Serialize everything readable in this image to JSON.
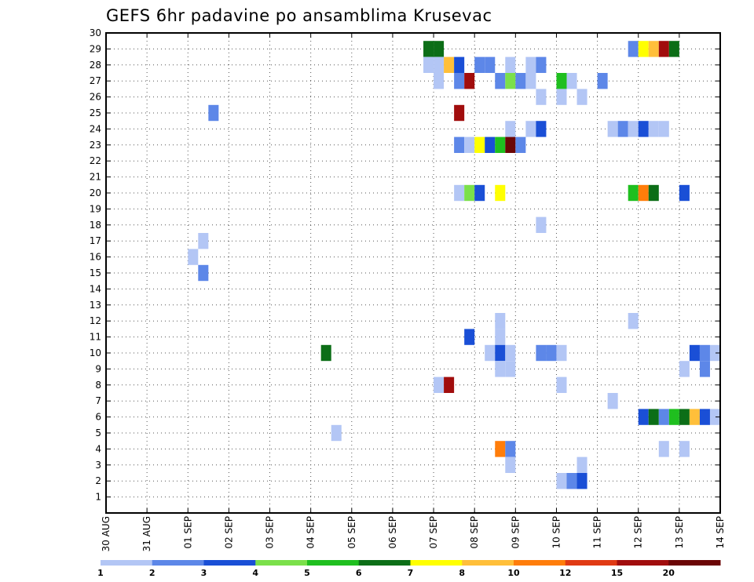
{
  "chart_data": {
    "type": "heatmap",
    "title": "GEFS 6hr padavine po ansamblima Krusevac",
    "xlabel": "",
    "ylabel": "",
    "x_range": [
      0,
      15
    ],
    "y_range": [
      0,
      30
    ],
    "cell_width_days": 0.25,
    "y_ticks": [
      1,
      2,
      3,
      4,
      5,
      6,
      7,
      8,
      9,
      10,
      11,
      12,
      13,
      14,
      15,
      16,
      17,
      18,
      19,
      20,
      21,
      22,
      23,
      24,
      25,
      26,
      27,
      28,
      29,
      30
    ],
    "x_ticks": [
      {
        "x": 0,
        "label": "30 AUG"
      },
      {
        "x": 1,
        "label": "31 AUG"
      },
      {
        "x": 2,
        "label": "01 SEP"
      },
      {
        "x": 3,
        "label": "02 SEP"
      },
      {
        "x": 4,
        "label": "03 SEP"
      },
      {
        "x": 5,
        "label": "04 SEP"
      },
      {
        "x": 6,
        "label": "05 SEP"
      },
      {
        "x": 7,
        "label": "06 SEP"
      },
      {
        "x": 8,
        "label": "07 SEP"
      },
      {
        "x": 9,
        "label": "08 SEP"
      },
      {
        "x": 10,
        "label": "09 SEP"
      },
      {
        "x": 11,
        "label": "10 SEP"
      },
      {
        "x": 12,
        "label": "11 SEP"
      },
      {
        "x": 13,
        "label": "12 SEP"
      },
      {
        "x": 14,
        "label": "13 SEP"
      },
      {
        "x": 15,
        "label": "14 SEP"
      }
    ],
    "grid": true,
    "colorbar": {
      "labels": [
        "1",
        "2",
        "3",
        "4",
        "5",
        "6",
        "7",
        "8",
        "10",
        "12",
        "15",
        "20"
      ],
      "colors": [
        "#b3c6f5",
        "#5d87e8",
        "#1a4fd6",
        "#7be04a",
        "#1fbf1f",
        "#0c6e17",
        "#ffff00",
        "#ffbf3a",
        "#ff7d0a",
        "#e03a14",
        "#a10d0d",
        "#6b0606"
      ]
    },
    "cells": [
      {
        "m": 29,
        "x": 7.75,
        "c": 5
      },
      {
        "m": 29,
        "x": 8.0,
        "c": 5
      },
      {
        "m": 29,
        "x": 12.75,
        "c": 1
      },
      {
        "m": 29,
        "x": 13.0,
        "c": 6
      },
      {
        "m": 29,
        "x": 13.25,
        "c": 7
      },
      {
        "m": 29,
        "x": 13.5,
        "c": 10
      },
      {
        "m": 29,
        "x": 13.75,
        "c": 5
      },
      {
        "m": 28,
        "x": 7.75,
        "c": 0
      },
      {
        "m": 28,
        "x": 8.0,
        "c": 0
      },
      {
        "m": 28,
        "x": 8.25,
        "c": 7
      },
      {
        "m": 28,
        "x": 8.5,
        "c": 2
      },
      {
        "m": 28,
        "x": 9.0,
        "c": 1
      },
      {
        "m": 28,
        "x": 9.25,
        "c": 1
      },
      {
        "m": 28,
        "x": 9.75,
        "c": 0
      },
      {
        "m": 28,
        "x": 10.25,
        "c": 0
      },
      {
        "m": 28,
        "x": 10.5,
        "c": 1
      },
      {
        "m": 27,
        "x": 8.0,
        "c": 0
      },
      {
        "m": 27,
        "x": 8.5,
        "c": 1
      },
      {
        "m": 27,
        "x": 8.75,
        "c": 10
      },
      {
        "m": 27,
        "x": 9.5,
        "c": 1
      },
      {
        "m": 27,
        "x": 9.75,
        "c": 3
      },
      {
        "m": 27,
        "x": 10.0,
        "c": 1
      },
      {
        "m": 27,
        "x": 10.25,
        "c": 0
      },
      {
        "m": 27,
        "x": 11.0,
        "c": 4
      },
      {
        "m": 27,
        "x": 11.25,
        "c": 0
      },
      {
        "m": 27,
        "x": 12.0,
        "c": 1
      },
      {
        "m": 26,
        "x": 10.5,
        "c": 0
      },
      {
        "m": 26,
        "x": 11.0,
        "c": 0
      },
      {
        "m": 26,
        "x": 11.5,
        "c": 0
      },
      {
        "m": 25,
        "x": 2.5,
        "c": 1
      },
      {
        "m": 25,
        "x": 8.5,
        "c": 10
      },
      {
        "m": 24,
        "x": 9.75,
        "c": 0
      },
      {
        "m": 24,
        "x": 10.25,
        "c": 0
      },
      {
        "m": 24,
        "x": 10.5,
        "c": 2
      },
      {
        "m": 24,
        "x": 12.25,
        "c": 0
      },
      {
        "m": 24,
        "x": 12.5,
        "c": 1
      },
      {
        "m": 24,
        "x": 12.75,
        "c": 0
      },
      {
        "m": 24,
        "x": 13.0,
        "c": 2
      },
      {
        "m": 24,
        "x": 13.25,
        "c": 0
      },
      {
        "m": 24,
        "x": 13.5,
        "c": 0
      },
      {
        "m": 23,
        "x": 8.5,
        "c": 1
      },
      {
        "m": 23,
        "x": 8.75,
        "c": 0
      },
      {
        "m": 23,
        "x": 9.0,
        "c": 6
      },
      {
        "m": 23,
        "x": 9.25,
        "c": 2
      },
      {
        "m": 23,
        "x": 9.5,
        "c": 4
      },
      {
        "m": 23,
        "x": 9.75,
        "c": 11
      },
      {
        "m": 23,
        "x": 10.0,
        "c": 1
      },
      {
        "m": 20,
        "x": 8.5,
        "c": 0
      },
      {
        "m": 20,
        "x": 8.75,
        "c": 3
      },
      {
        "m": 20,
        "x": 9.0,
        "c": 2
      },
      {
        "m": 20,
        "x": 9.5,
        "c": 6
      },
      {
        "m": 20,
        "x": 12.75,
        "c": 4
      },
      {
        "m": 20,
        "x": 13.0,
        "c": 8
      },
      {
        "m": 20,
        "x": 13.25,
        "c": 5
      },
      {
        "m": 20,
        "x": 14.0,
        "c": 2
      },
      {
        "m": 18,
        "x": 10.5,
        "c": 0
      },
      {
        "m": 17,
        "x": 2.25,
        "c": 0
      },
      {
        "m": 16,
        "x": 2.0,
        "c": 0
      },
      {
        "m": 15,
        "x": 2.25,
        "c": 1
      },
      {
        "m": 12,
        "x": 9.5,
        "c": 0
      },
      {
        "m": 12,
        "x": 12.75,
        "c": 0
      },
      {
        "m": 11,
        "x": 8.75,
        "c": 2
      },
      {
        "m": 11,
        "x": 9.5,
        "c": 0
      },
      {
        "m": 10,
        "x": 5.25,
        "c": 5
      },
      {
        "m": 10,
        "x": 9.25,
        "c": 0
      },
      {
        "m": 10,
        "x": 9.5,
        "c": 2
      },
      {
        "m": 10,
        "x": 9.75,
        "c": 0
      },
      {
        "m": 10,
        "x": 10.5,
        "c": 1
      },
      {
        "m": 10,
        "x": 10.75,
        "c": 1
      },
      {
        "m": 10,
        "x": 11.0,
        "c": 0
      },
      {
        "m": 10,
        "x": 14.25,
        "c": 2
      },
      {
        "m": 10,
        "x": 14.5,
        "c": 1
      },
      {
        "m": 10,
        "x": 14.75,
        "c": 0
      },
      {
        "m": 9,
        "x": 9.5,
        "c": 0
      },
      {
        "m": 9,
        "x": 9.75,
        "c": 0
      },
      {
        "m": 9,
        "x": 14.0,
        "c": 0
      },
      {
        "m": 9,
        "x": 14.5,
        "c": 1
      },
      {
        "m": 8,
        "x": 8.0,
        "c": 0
      },
      {
        "m": 8,
        "x": 8.25,
        "c": 10
      },
      {
        "m": 8,
        "x": 11.0,
        "c": 0
      },
      {
        "m": 7,
        "x": 12.25,
        "c": 0
      },
      {
        "m": 6,
        "x": 13.0,
        "c": 2
      },
      {
        "m": 6,
        "x": 13.25,
        "c": 5
      },
      {
        "m": 6,
        "x": 13.5,
        "c": 1
      },
      {
        "m": 6,
        "x": 13.75,
        "c": 4
      },
      {
        "m": 6,
        "x": 14.0,
        "c": 5
      },
      {
        "m": 6,
        "x": 14.25,
        "c": 7
      },
      {
        "m": 6,
        "x": 14.5,
        "c": 2
      },
      {
        "m": 6,
        "x": 14.75,
        "c": 0
      },
      {
        "m": 5,
        "x": 5.5,
        "c": 0
      },
      {
        "m": 4,
        "x": 9.5,
        "c": 8
      },
      {
        "m": 4,
        "x": 9.75,
        "c": 1
      },
      {
        "m": 4,
        "x": 13.5,
        "c": 0
      },
      {
        "m": 4,
        "x": 14.0,
        "c": 0
      },
      {
        "m": 3,
        "x": 9.75,
        "c": 0
      },
      {
        "m": 3,
        "x": 11.5,
        "c": 0
      },
      {
        "m": 2,
        "x": 11.0,
        "c": 0
      },
      {
        "m": 2,
        "x": 11.25,
        "c": 1
      },
      {
        "m": 2,
        "x": 11.5,
        "c": 2
      }
    ]
  }
}
